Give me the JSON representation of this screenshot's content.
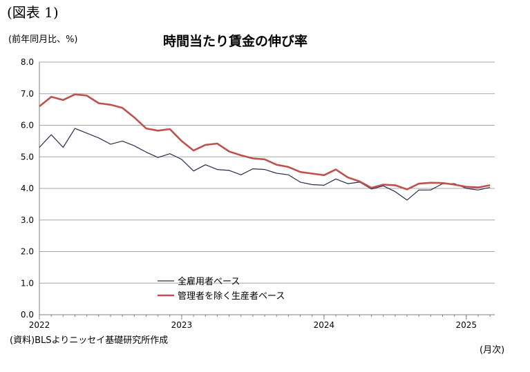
{
  "figure_label": "(図表 1)",
  "unit_label": "(前年同月比、%)",
  "title": "時間当たり賃金の伸び率",
  "source_note": "(資料)BLSよりニッセイ基礎研究所作成",
  "x_unit_label": "(月次)",
  "chart_data": {
    "type": "line",
    "title": "時間当たり賃金の伸び率",
    "ylabel": "(前年同月比、%)",
    "xlabel": "(月次)",
    "ylim": [
      0,
      8
    ],
    "yticks": [
      "0.0",
      "1.0",
      "2.0",
      "3.0",
      "4.0",
      "5.0",
      "6.0",
      "7.0",
      "8.0"
    ],
    "xticks": [
      "2022",
      "2023",
      "2024",
      "2025"
    ],
    "grid": "horizontal",
    "legend_position": "lower-center",
    "months": [
      "2022-01",
      "2022-02",
      "2022-03",
      "2022-04",
      "2022-05",
      "2022-06",
      "2022-07",
      "2022-08",
      "2022-09",
      "2022-10",
      "2022-11",
      "2022-12",
      "2023-01",
      "2023-02",
      "2023-03",
      "2023-04",
      "2023-05",
      "2023-06",
      "2023-07",
      "2023-08",
      "2023-09",
      "2023-10",
      "2023-11",
      "2023-12",
      "2024-01",
      "2024-02",
      "2024-03",
      "2024-04",
      "2024-05",
      "2024-06",
      "2024-07",
      "2024-08",
      "2024-09",
      "2024-10",
      "2024-11",
      "2024-12",
      "2025-01",
      "2025-02",
      "2025-03"
    ],
    "series": [
      {
        "name": "全雇用者ベース",
        "color": "#1f2d4e",
        "values": [
          5.3,
          5.7,
          5.3,
          5.9,
          5.75,
          5.6,
          5.4,
          5.5,
          5.35,
          5.15,
          4.98,
          5.1,
          4.92,
          4.55,
          4.75,
          4.6,
          4.57,
          4.43,
          4.62,
          4.6,
          4.48,
          4.43,
          4.2,
          4.12,
          4.1,
          4.3,
          4.15,
          4.2,
          3.98,
          4.08,
          3.9,
          3.63,
          3.95,
          3.95,
          4.15,
          4.15,
          4.0,
          3.95,
          4.03
        ]
      },
      {
        "name": "管理者を除く生産者ベース",
        "color": "#c0504d",
        "values": [
          6.6,
          6.9,
          6.8,
          6.98,
          6.94,
          6.7,
          6.65,
          6.55,
          6.25,
          5.9,
          5.83,
          5.88,
          5.5,
          5.2,
          5.38,
          5.42,
          5.17,
          5.05,
          4.95,
          4.92,
          4.75,
          4.68,
          4.52,
          4.47,
          4.42,
          4.6,
          4.35,
          4.22,
          4.02,
          4.12,
          4.1,
          3.97,
          4.15,
          4.18,
          4.17,
          4.12,
          4.05,
          4.03,
          4.1
        ]
      }
    ]
  }
}
